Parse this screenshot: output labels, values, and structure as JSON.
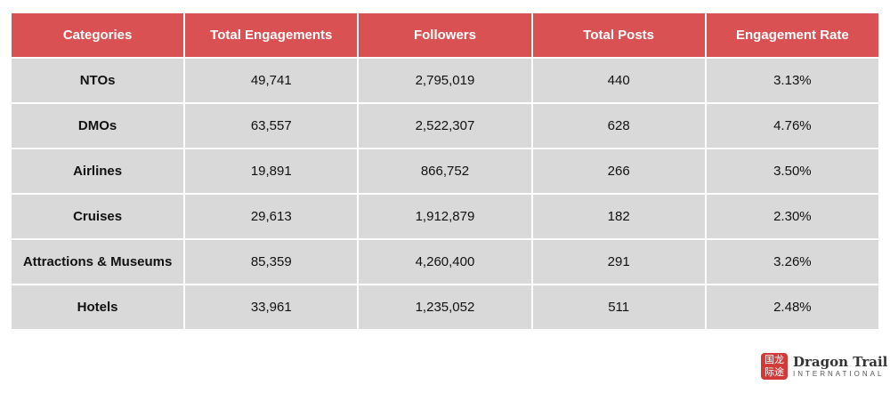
{
  "table": {
    "headers": [
      "Categories",
      "Total Engagements",
      "Followers",
      "Total Posts",
      "Engagement Rate"
    ],
    "rows": [
      [
        "NTOs",
        "49,741",
        "2,795,019",
        "440",
        "3.13%"
      ],
      [
        "DMOs",
        "63,557",
        "2,522,307",
        "628",
        "4.76%"
      ],
      [
        "Airlines",
        "19,891",
        "866,752",
        "266",
        "3.50%"
      ],
      [
        "Cruises",
        "29,613",
        "1,912,879",
        "182",
        "2.30%"
      ],
      [
        "Attractions & Museums",
        "85,359",
        "4,260,400",
        "291",
        "3.26%"
      ],
      [
        "Hotels",
        "33,961",
        "1,235,052",
        "511",
        "2.48%"
      ]
    ]
  },
  "logo": {
    "seal_text": "国龙际途",
    "name": "Dragon Trail",
    "subtitle": "INTERNATIONAL"
  },
  "colors": {
    "header": "#d95152",
    "row": "#d9d9d9"
  }
}
